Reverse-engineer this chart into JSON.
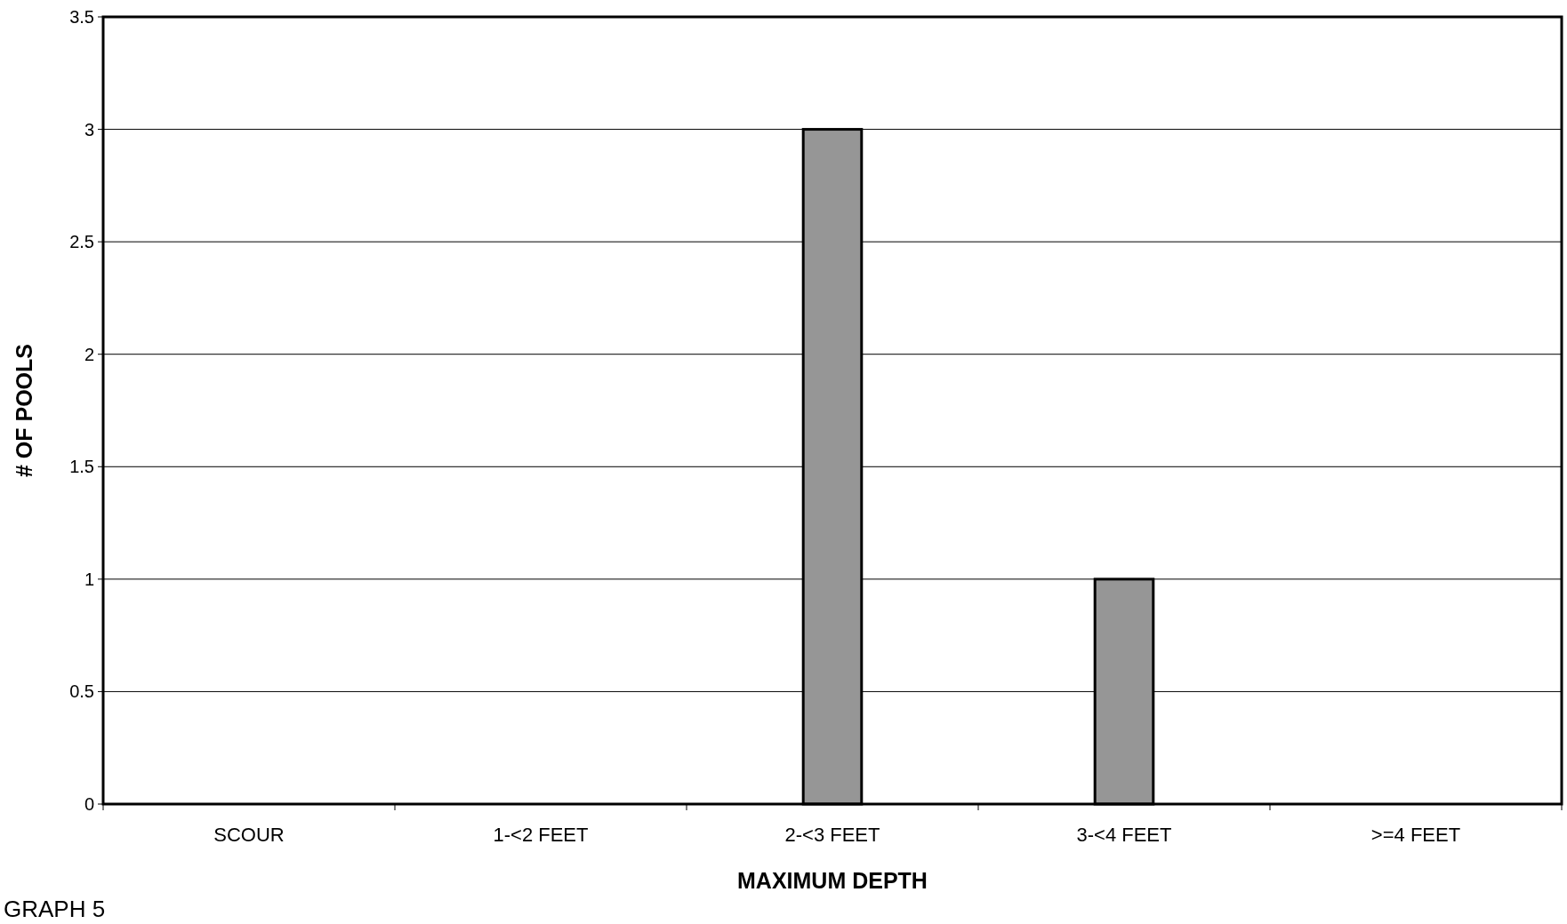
{
  "chart_data": {
    "type": "bar",
    "xlabel": "MAXIMUM DEPTH",
    "ylabel": "# OF POOLS",
    "categories": [
      "SCOUR",
      "1-<2 FEET",
      "2-<3 FEET",
      "3-<4 FEET",
      ">=4 FEET"
    ],
    "values": [
      0,
      0,
      3,
      1,
      0
    ],
    "color": "#969696",
    "ylim": [
      0,
      3.5
    ],
    "yticks": [
      0,
      0.5,
      1,
      1.5,
      2,
      2.5,
      3,
      3.5
    ],
    "grid": "y",
    "annotations": [
      "GRAPH 5"
    ]
  }
}
